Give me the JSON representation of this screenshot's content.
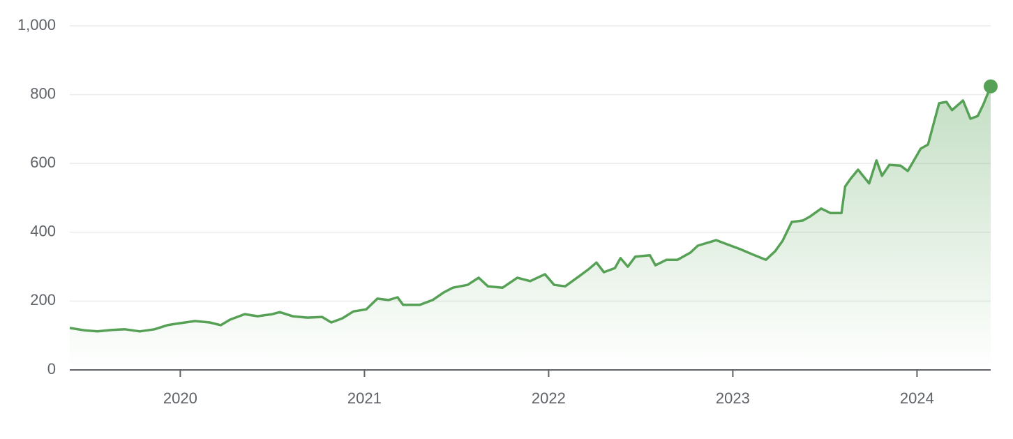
{
  "chart_data": {
    "type": "line",
    "x": [
      2019.4,
      2019.48,
      2019.55,
      2019.63,
      2019.7,
      2019.78,
      2019.86,
      2019.93,
      2020.0,
      2020.08,
      2020.16,
      2020.22,
      2020.27,
      2020.35,
      2020.42,
      2020.5,
      2020.54,
      2020.61,
      2020.69,
      2020.77,
      2020.82,
      2020.88,
      2020.94,
      2021.01,
      2021.07,
      2021.13,
      2021.18,
      2021.21,
      2021.3,
      2021.37,
      2021.43,
      2021.48,
      2021.56,
      2021.62,
      2021.67,
      2021.75,
      2021.83,
      2021.9,
      2021.98,
      2022.03,
      2022.09,
      2022.17,
      2022.22,
      2022.26,
      2022.3,
      2022.36,
      2022.39,
      2022.43,
      2022.47,
      2022.55,
      2022.58,
      2022.64,
      2022.7,
      2022.77,
      2022.81,
      2022.91,
      2022.96,
      2023.04,
      2023.11,
      2023.18,
      2023.23,
      2023.27,
      2023.32,
      2023.38,
      2023.42,
      2023.48,
      2023.53,
      2023.59,
      2023.61,
      2023.64,
      2023.68,
      2023.74,
      2023.78,
      2023.81,
      2023.85,
      2023.91,
      2023.95,
      2024.02,
      2024.06,
      2024.12,
      2024.16,
      2024.19,
      2024.25,
      2024.29,
      2024.33,
      2024.36,
      2024.4
    ],
    "series": [
      {
        "color": "#56a156",
        "values": [
          122,
          115,
          112,
          116,
          118,
          112,
          118,
          130,
          136,
          142,
          138,
          130,
          146,
          162,
          156,
          162,
          168,
          156,
          152,
          154,
          138,
          150,
          170,
          176,
          207,
          203,
          211,
          189,
          189,
          203,
          225,
          239,
          247,
          268,
          243,
          239,
          268,
          258,
          278,
          247,
          243,
          274,
          294,
          312,
          284,
          296,
          325,
          300,
          329,
          333,
          304,
          320,
          320,
          341,
          361,
          377,
          367,
          351,
          335,
          320,
          345,
          375,
          430,
          434,
          446,
          469,
          456,
          456,
          533,
          556,
          582,
          542,
          609,
          564,
          596,
          594,
          578,
          643,
          655,
          775,
          779,
          755,
          783,
          730,
          738,
          771,
          824
        ]
      }
    ],
    "xlim": [
      2019.4,
      2024.4
    ],
    "xticks": [
      2020,
      2021,
      2022,
      2023,
      2024
    ],
    "ylim": [
      0,
      1000
    ],
    "yticks": [
      0,
      200,
      400,
      600,
      800,
      {
        "value": 1000,
        "label": "1,000"
      }
    ],
    "grid": true
  }
}
